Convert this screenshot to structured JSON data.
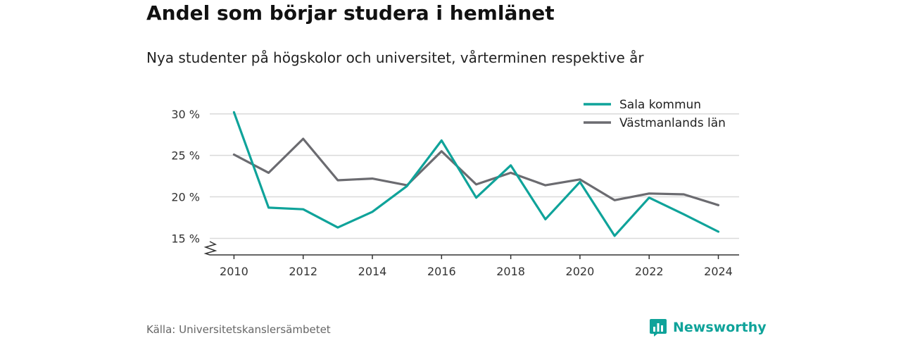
{
  "header": {
    "title": "Andel som börjar studera i hemlänet",
    "subtitle": "Nya studenter på högskolor och universitet, vårterminen respektive år"
  },
  "footer": {
    "source": "Källa: Universitetskanslersämbetet",
    "brand": "Newsworthy",
    "brand_color": "#0fa39a",
    "brand_icon": "bar-chart-speech-bubble-icon"
  },
  "chart_data": {
    "type": "line",
    "x": [
      2010,
      2011,
      2012,
      2013,
      2014,
      2015,
      2016,
      2017,
      2018,
      2019,
      2020,
      2021,
      2022,
      2023,
      2024
    ],
    "series": [
      {
        "name": "Sala kommun",
        "color": "#0fa39a",
        "values": [
          30.2,
          18.7,
          18.5,
          16.3,
          18.2,
          21.3,
          26.8,
          19.9,
          23.8,
          17.3,
          21.8,
          15.3,
          19.9,
          17.9,
          15.8
        ]
      },
      {
        "name": "Västmanlands län",
        "color": "#6b6b70",
        "values": [
          25.1,
          22.9,
          27.0,
          22.0,
          22.2,
          21.4,
          25.5,
          21.5,
          22.9,
          21.4,
          22.1,
          19.6,
          20.4,
          20.3,
          19.0
        ]
      }
    ],
    "xticks": [
      2010,
      2012,
      2014,
      2016,
      2018,
      2020,
      2022,
      2024
    ],
    "xtick_labels": [
      "2010",
      "2012",
      "2014",
      "2016",
      "2018",
      "2020",
      "2022",
      "2024"
    ],
    "yticks": [
      15,
      20,
      25,
      30
    ],
    "ytick_labels": [
      "15 %",
      "20 %",
      "25 %",
      "30 %"
    ],
    "xlim": [
      2009.3,
      2024.6
    ],
    "ylim": [
      13,
      31
    ],
    "y_axis_break": true,
    "grid": "horizontal",
    "legend_position": "top-right",
    "xlabel": "",
    "ylabel": ""
  }
}
